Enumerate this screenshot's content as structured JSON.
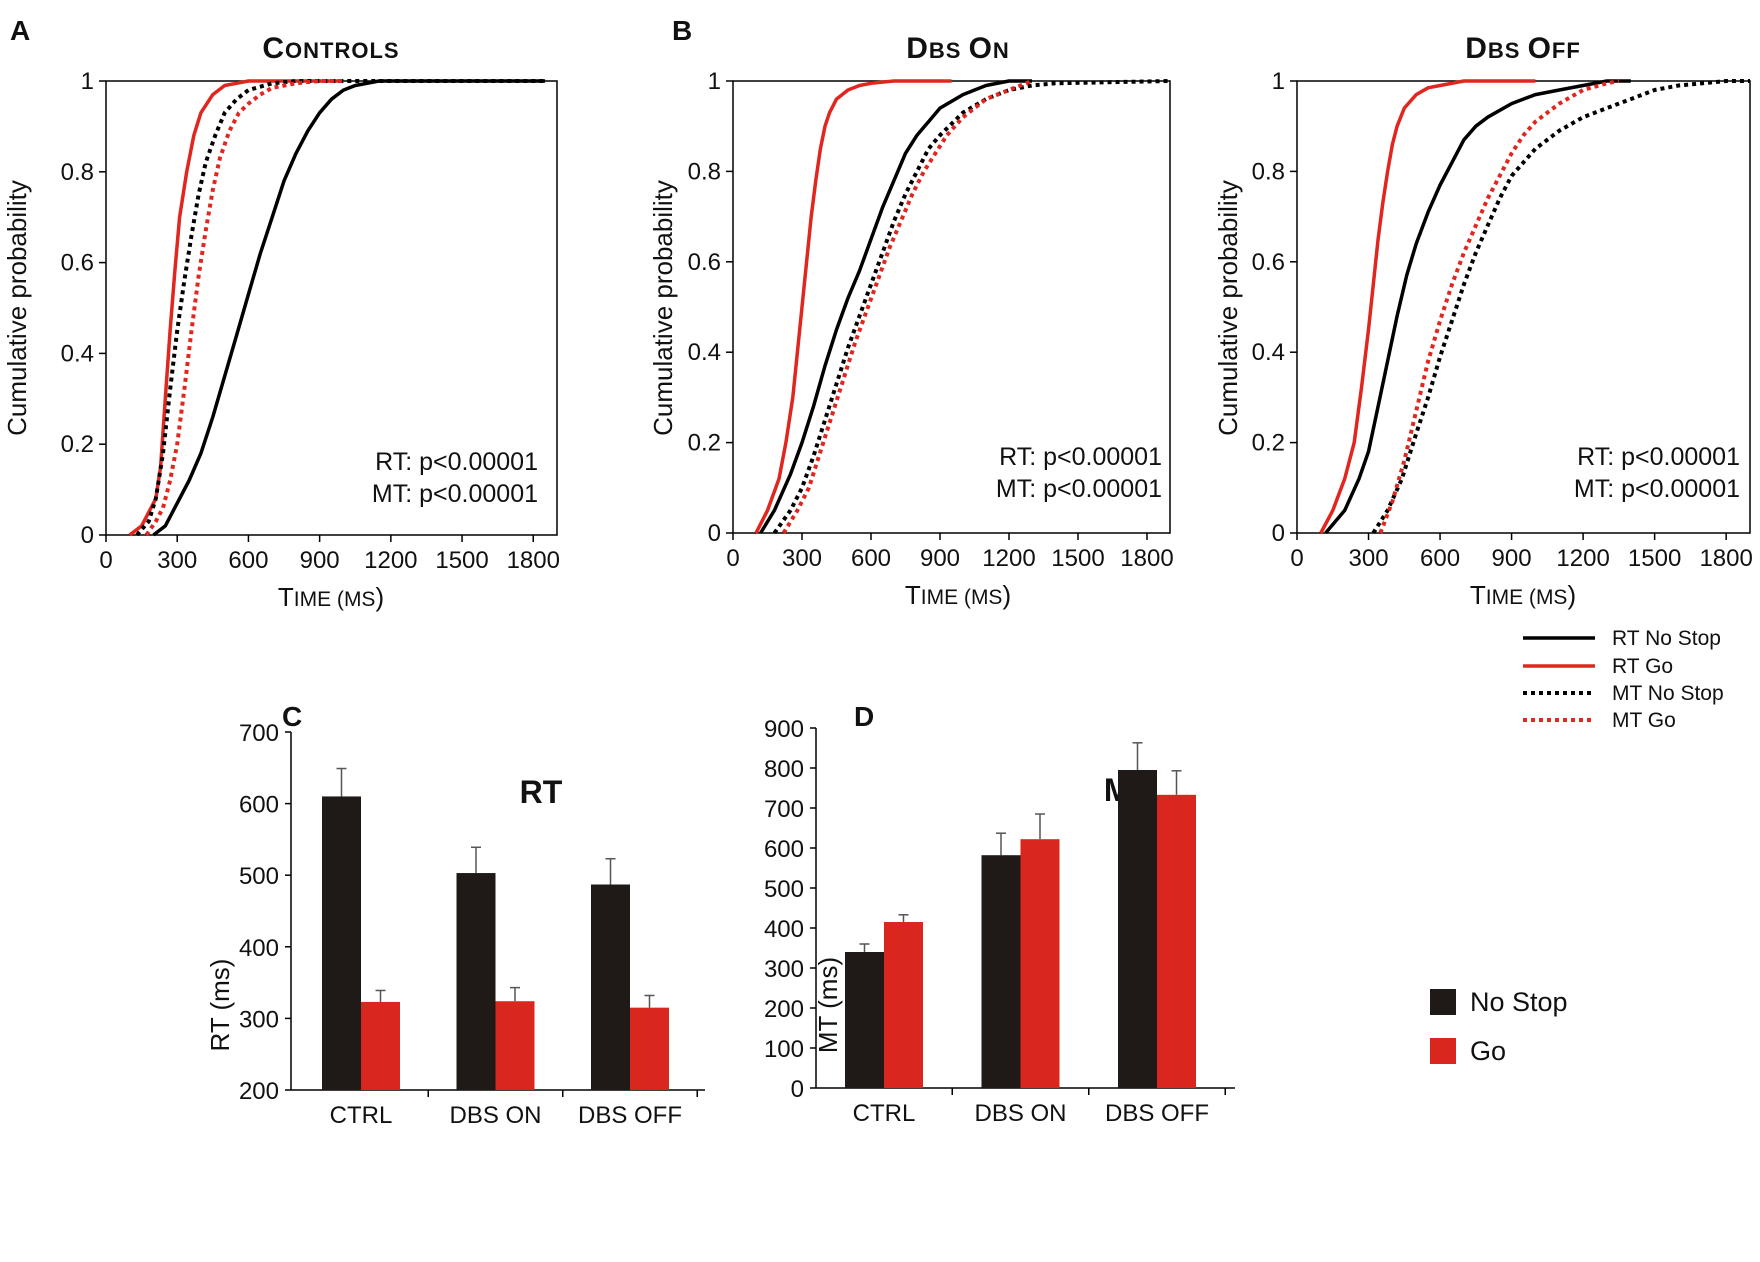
{
  "colors": {
    "no_stop": "#000000",
    "go": "#e0261e",
    "bar_no_stop": "#1f1a17",
    "bar_go": "#d9261f"
  },
  "panels": {
    "A": "A",
    "B": "B",
    "C": "C",
    "D": "D"
  },
  "cdf_legend": {
    "rt_no_stop": "RT No Stop",
    "rt_go": "RT Go",
    "mt_no_stop": "MT No Stop",
    "mt_go": "MT Go"
  },
  "bar_legend": {
    "no_stop": "No Stop",
    "go": "Go"
  },
  "chart_data": [
    {
      "type": "line",
      "id": "controls",
      "title_parts": [
        "C",
        "ONTROLS"
      ],
      "xlabel_parts": [
        "T",
        "IME (",
        "MS",
        ")"
      ],
      "ylabel": "Cumulative probability",
      "xlim": [
        0,
        1900
      ],
      "ylim": [
        0,
        1
      ],
      "xticks": [
        0,
        300,
        600,
        900,
        1200,
        1500,
        1800
      ],
      "yticks": [
        0,
        0.2,
        0.4,
        0.6,
        0.8,
        1
      ],
      "ytick_labels": [
        "0",
        "0.2",
        "0.4",
        "0.6",
        "0.8",
        "1"
      ],
      "stats": [
        "RT: p<0.00001",
        "MT: p<0.00001"
      ],
      "series": [
        {
          "name": "RT No Stop",
          "style": "solid",
          "color": "#000000",
          "x": [
            200,
            250,
            300,
            350,
            400,
            450,
            500,
            550,
            600,
            650,
            700,
            750,
            800,
            850,
            900,
            950,
            1000,
            1050,
            1100,
            1150,
            1200,
            1250,
            1300,
            1850
          ],
          "y": [
            0,
            0.02,
            0.07,
            0.12,
            0.18,
            0.26,
            0.35,
            0.44,
            0.53,
            0.62,
            0.7,
            0.78,
            0.84,
            0.89,
            0.93,
            0.96,
            0.98,
            0.99,
            0.995,
            1,
            1,
            1,
            1,
            1
          ]
        },
        {
          "name": "RT Go",
          "style": "solid",
          "color": "#e0261e",
          "x": [
            100,
            150,
            180,
            210,
            230,
            250,
            270,
            290,
            310,
            340,
            370,
            400,
            450,
            500,
            550,
            600,
            700,
            800,
            1000
          ],
          "y": [
            0,
            0.02,
            0.05,
            0.08,
            0.15,
            0.3,
            0.45,
            0.58,
            0.7,
            0.8,
            0.88,
            0.93,
            0.97,
            0.99,
            0.995,
            1,
            1,
            1,
            1
          ]
        },
        {
          "name": "MT No Stop",
          "style": "dotted",
          "color": "#000000",
          "x": [
            130,
            180,
            210,
            240,
            270,
            300,
            330,
            360,
            390,
            420,
            460,
            500,
            550,
            600,
            700,
            800,
            1000,
            1850
          ],
          "y": [
            0,
            0.03,
            0.08,
            0.18,
            0.32,
            0.45,
            0.56,
            0.66,
            0.75,
            0.82,
            0.88,
            0.93,
            0.96,
            0.98,
            0.995,
            1,
            1,
            1
          ]
        },
        {
          "name": "MT Go",
          "style": "dotted",
          "color": "#e0261e",
          "x": [
            170,
            210,
            240,
            270,
            300,
            330,
            360,
            390,
            420,
            450,
            480,
            520,
            560,
            600,
            650,
            700,
            800,
            900,
            1000
          ],
          "y": [
            0,
            0.03,
            0.06,
            0.12,
            0.2,
            0.32,
            0.45,
            0.57,
            0.67,
            0.76,
            0.83,
            0.89,
            0.93,
            0.95,
            0.97,
            0.985,
            0.995,
            1,
            1
          ]
        }
      ]
    },
    {
      "type": "line",
      "id": "dbs_on",
      "title_parts": [
        "D",
        "BS ",
        "O",
        "N"
      ],
      "xlabel_parts": [
        "T",
        "IME (",
        "MS",
        ")"
      ],
      "ylabel": "Cumulative probability",
      "xlim": [
        0,
        1900
      ],
      "ylim": [
        0,
        1
      ],
      "xticks": [
        0,
        300,
        600,
        900,
        1200,
        1500,
        1800
      ],
      "yticks": [
        0,
        0.2,
        0.4,
        0.6,
        0.8,
        1
      ],
      "ytick_labels": [
        "0",
        "0.2",
        "0.4",
        "0.6",
        "0.8",
        "1"
      ],
      "stats": [
        "RT: p<0.00001",
        "MT: p<0.00001"
      ],
      "series": [
        {
          "name": "RT No Stop",
          "style": "solid",
          "color": "#000000",
          "x": [
            120,
            180,
            250,
            300,
            350,
            400,
            450,
            500,
            550,
            600,
            650,
            700,
            750,
            800,
            850,
            900,
            1000,
            1100,
            1200,
            1250,
            1300
          ],
          "y": [
            0,
            0.05,
            0.13,
            0.2,
            0.28,
            0.37,
            0.45,
            0.52,
            0.58,
            0.65,
            0.72,
            0.78,
            0.84,
            0.88,
            0.91,
            0.94,
            0.97,
            0.99,
            1,
            1,
            1
          ]
        },
        {
          "name": "RT Go",
          "style": "solid",
          "color": "#e0261e",
          "x": [
            100,
            150,
            200,
            230,
            260,
            280,
            300,
            320,
            340,
            360,
            380,
            400,
            420,
            450,
            500,
            550,
            600,
            700,
            800,
            950
          ],
          "y": [
            0,
            0.05,
            0.12,
            0.2,
            0.3,
            0.4,
            0.5,
            0.6,
            0.7,
            0.78,
            0.85,
            0.9,
            0.93,
            0.96,
            0.98,
            0.99,
            0.995,
            1,
            1,
            1
          ]
        },
        {
          "name": "MT No Stop",
          "style": "dotted",
          "color": "#000000",
          "x": [
            180,
            250,
            300,
            350,
            400,
            450,
            500,
            550,
            600,
            650,
            700,
            750,
            800,
            850,
            900,
            1000,
            1100,
            1200,
            1300,
            1400,
            1900
          ],
          "y": [
            0,
            0.05,
            0.1,
            0.17,
            0.25,
            0.33,
            0.41,
            0.48,
            0.55,
            0.62,
            0.69,
            0.75,
            0.8,
            0.85,
            0.88,
            0.93,
            0.96,
            0.98,
            0.99,
            0.995,
            1
          ]
        },
        {
          "name": "MT Go",
          "style": "dotted",
          "color": "#e0261e",
          "x": [
            220,
            280,
            330,
            380,
            430,
            480,
            530,
            580,
            630,
            680,
            730,
            780,
            830,
            880,
            930,
            1000,
            1100,
            1200,
            1300
          ],
          "y": [
            0,
            0.05,
            0.1,
            0.18,
            0.26,
            0.34,
            0.42,
            0.49,
            0.56,
            0.63,
            0.69,
            0.75,
            0.8,
            0.84,
            0.88,
            0.92,
            0.96,
            0.98,
            1
          ]
        }
      ]
    },
    {
      "type": "line",
      "id": "dbs_off",
      "title_parts": [
        "D",
        "BS ",
        "O",
        "FF"
      ],
      "xlabel_parts": [
        "T",
        "IME (",
        "MS",
        ")"
      ],
      "ylabel": "Cumulative probability",
      "xlim": [
        0,
        1900
      ],
      "ylim": [
        0,
        1
      ],
      "xticks": [
        0,
        300,
        600,
        900,
        1200,
        1500,
        1800
      ],
      "yticks": [
        0,
        0.2,
        0.4,
        0.6,
        0.8,
        1
      ],
      "ytick_labels": [
        "0",
        "0.2",
        "0.4",
        "0.6",
        "0.8",
        "1"
      ],
      "stats": [
        "RT: p<0.00001",
        "MT: p<0.00001"
      ],
      "series": [
        {
          "name": "RT No Stop",
          "style": "solid",
          "color": "#000000",
          "x": [
            120,
            200,
            260,
            300,
            340,
            380,
            420,
            460,
            500,
            550,
            600,
            650,
            700,
            750,
            800,
            900,
            1000,
            1100,
            1200,
            1300,
            1400
          ],
          "y": [
            0,
            0.05,
            0.12,
            0.18,
            0.28,
            0.38,
            0.48,
            0.57,
            0.64,
            0.71,
            0.77,
            0.82,
            0.87,
            0.9,
            0.92,
            0.95,
            0.97,
            0.98,
            0.99,
            1,
            1
          ]
        },
        {
          "name": "RT Go",
          "style": "solid",
          "color": "#e0261e",
          "x": [
            100,
            150,
            200,
            240,
            270,
            300,
            320,
            340,
            360,
            380,
            400,
            420,
            450,
            500,
            550,
            600,
            700,
            800,
            1000
          ],
          "y": [
            0,
            0.05,
            0.12,
            0.2,
            0.32,
            0.45,
            0.55,
            0.65,
            0.73,
            0.8,
            0.86,
            0.9,
            0.94,
            0.97,
            0.985,
            0.99,
            1,
            1,
            1
          ]
        },
        {
          "name": "MT No Stop",
          "style": "dotted",
          "color": "#000000",
          "x": [
            320,
            380,
            440,
            500,
            550,
            600,
            650,
            700,
            750,
            800,
            850,
            900,
            1000,
            1100,
            1200,
            1300,
            1400,
            1500,
            1600,
            1700,
            1800,
            1900
          ],
          "y": [
            0,
            0.05,
            0.12,
            0.22,
            0.3,
            0.39,
            0.47,
            0.55,
            0.62,
            0.68,
            0.74,
            0.79,
            0.85,
            0.89,
            0.92,
            0.94,
            0.96,
            0.98,
            0.99,
            0.995,
            1,
            1
          ]
        },
        {
          "name": "MT Go",
          "style": "dotted",
          "color": "#e0261e",
          "x": [
            350,
            400,
            450,
            500,
            550,
            600,
            650,
            700,
            750,
            800,
            850,
            900,
            950,
            1000,
            1100,
            1200,
            1300,
            1350
          ],
          "y": [
            0,
            0.07,
            0.16,
            0.27,
            0.38,
            0.47,
            0.55,
            0.62,
            0.68,
            0.74,
            0.79,
            0.84,
            0.88,
            0.91,
            0.95,
            0.98,
            0.995,
            1
          ]
        }
      ]
    },
    {
      "type": "bar",
      "id": "rt_bar",
      "title": "RT",
      "ylabel": "RT (ms)",
      "categories": [
        "CTRL",
        "DBS ON",
        "DBS OFF"
      ],
      "ylim": [
        200,
        700
      ],
      "yticks": [
        200,
        300,
        400,
        500,
        600,
        700
      ],
      "series": [
        {
          "name": "No Stop",
          "values": [
            610,
            503,
            487
          ],
          "errors": [
            39,
            36,
            36
          ]
        },
        {
          "name": "Go",
          "values": [
            323,
            324,
            315
          ],
          "errors": [
            16,
            19,
            17
          ]
        }
      ]
    },
    {
      "type": "bar",
      "id": "mt_bar",
      "title": "MT",
      "ylabel": "MT (ms)",
      "categories": [
        "CTRL",
        "DBS ON",
        "DBS OFF"
      ],
      "ylim": [
        0,
        900
      ],
      "yticks": [
        0,
        100,
        200,
        300,
        400,
        500,
        600,
        700,
        800,
        900
      ],
      "series": [
        {
          "name": "No Stop",
          "values": [
            340,
            582,
            795
          ],
          "errors": [
            20,
            55,
            68
          ]
        },
        {
          "name": "Go",
          "values": [
            415,
            622,
            733
          ],
          "errors": [
            18,
            63,
            60
          ]
        }
      ]
    }
  ]
}
